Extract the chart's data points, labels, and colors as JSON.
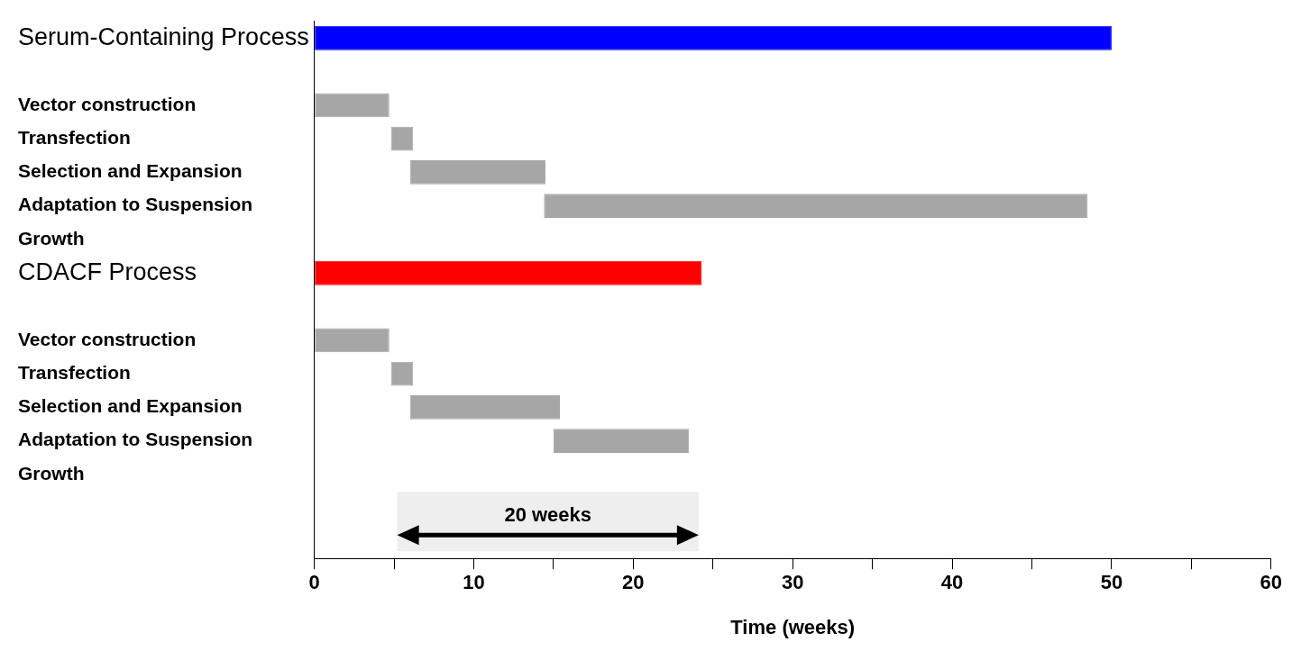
{
  "chart_data": {
    "type": "bar",
    "orientation": "horizontal",
    "xlabel": "Time (weeks)",
    "categories": [
      "Serum-Containing Process",
      null,
      "Vector construction",
      "Transfection",
      "Selection and Expansion",
      "Adaptation to Suspension",
      "Growth",
      "CDACF Process",
      null,
      "Vector construction",
      "Transfection",
      "Selection and Expansion",
      "Adaptation to Suspension",
      "Growth",
      null,
      null
    ],
    "series": [
      {
        "colors": [
          "#0000ff",
          null,
          null,
          null,
          null,
          null,
          null,
          "#ff0000",
          null,
          null,
          null,
          null,
          null,
          null,
          null,
          null
        ],
        "base": [
          0,
          null,
          null,
          null,
          null,
          null,
          null,
          0,
          null,
          null,
          null,
          null,
          null,
          null,
          null,
          null
        ],
        "values": [
          50,
          null,
          null,
          null,
          null,
          null,
          null,
          24.3,
          null,
          null,
          null,
          null,
          null,
          null,
          null,
          null
        ]
      },
      {
        "color": "#a6a6a6",
        "base": [
          null,
          null,
          0,
          4.8,
          6,
          14.4,
          null,
          null,
          null,
          0,
          4.8,
          6,
          15,
          null,
          null,
          null
        ],
        "values": [
          null,
          null,
          4.7,
          1.4,
          8.5,
          34.1,
          null,
          null,
          null,
          4.7,
          1.4,
          9.4,
          8.5,
          null,
          null,
          null
        ]
      }
    ],
    "xlim": [
      0,
      60
    ],
    "xticks": [
      0,
      {
        "value": 5,
        "label": null
      },
      10,
      {
        "value": 15,
        "label": null
      },
      20,
      {
        "value": 25,
        "label": null
      },
      30,
      {
        "value": 35,
        "label": null
      },
      40,
      {
        "value": 45,
        "label": null
      },
      50,
      {
        "value": 55,
        "label": null
      },
      60
    ],
    "bands": [
      {
        "axis": "x",
        "from": 5.2,
        "to": 24.1,
        "label": "20 weeks",
        "color": "#eeeeee"
      }
    ],
    "grid": false,
    "legend": false
  }
}
